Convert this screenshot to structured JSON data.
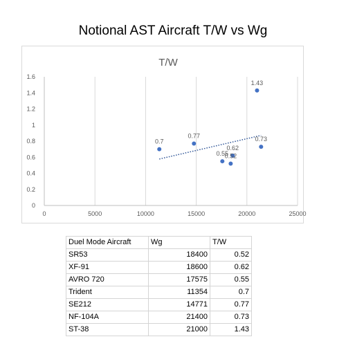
{
  "page": {
    "title": "Notional AST Aircraft T/W vs Wg"
  },
  "chart_data": {
    "type": "scatter",
    "title": "T/W",
    "xlabel": "",
    "ylabel": "",
    "xlim": [
      0,
      25000
    ],
    "ylim": [
      0,
      1.6
    ],
    "xticks": [
      0,
      5000,
      10000,
      15000,
      20000,
      25000
    ],
    "yticks": [
      0,
      0.2,
      0.4,
      0.6,
      0.8,
      1,
      1.2,
      1.4,
      1.6
    ],
    "xtick_labels": [
      "0",
      "5000",
      "10000",
      "15000",
      "20000",
      "25000"
    ],
    "ytick_labels": [
      "0",
      "0.2",
      "0.4",
      "0.6",
      "0.8",
      "1",
      "1.2",
      "1.4",
      "1.6"
    ],
    "grid": {
      "vertical": true,
      "horizontal": false
    },
    "legend": "none",
    "points": [
      {
        "x": 18400,
        "y": 0.52,
        "label": "0.52"
      },
      {
        "x": 18600,
        "y": 0.62,
        "label": "0.62"
      },
      {
        "x": 17575,
        "y": 0.55,
        "label": "0.55"
      },
      {
        "x": 11354,
        "y": 0.7,
        "label": "0.7"
      },
      {
        "x": 14771,
        "y": 0.77,
        "label": "0.77"
      },
      {
        "x": 21400,
        "y": 0.73,
        "label": "0.73"
      },
      {
        "x": 21000,
        "y": 1.43,
        "label": "1.43"
      }
    ],
    "trendline": {
      "type": "linear",
      "style": "dotted",
      "x_range": [
        11354,
        21400
      ]
    },
    "colors": {
      "marker": "#4472c4",
      "trendline": "#2f5597",
      "grid": "#d9d9d9",
      "axis": "#bfbfbf",
      "text": "#595959"
    }
  },
  "table": {
    "headers": [
      "Duel Mode Aircraft",
      "Wg",
      "T/W"
    ],
    "rows": [
      [
        "SR53",
        "18400",
        "0.52"
      ],
      [
        "XF-91",
        "18600",
        "0.62"
      ],
      [
        "AVRO 720",
        "17575",
        "0.55"
      ],
      [
        "Trident",
        "11354",
        "0.7"
      ],
      [
        "SE212",
        "14771",
        "0.77"
      ],
      [
        "NF-104A",
        "21400",
        "0.73"
      ],
      [
        "ST-38",
        "21000",
        "1.43"
      ]
    ]
  }
}
